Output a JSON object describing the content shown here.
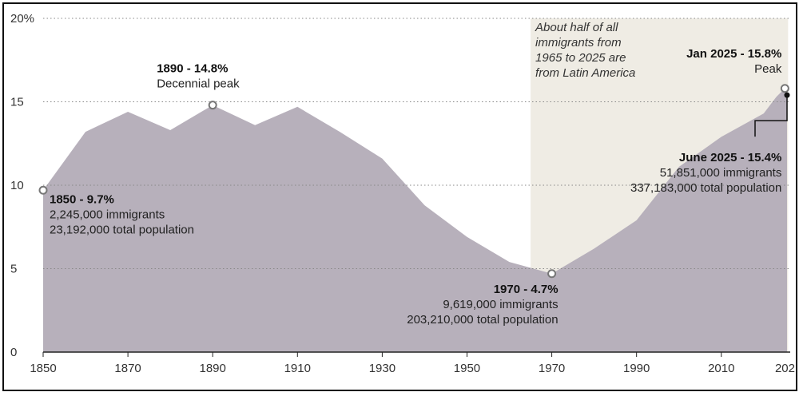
{
  "chart_data": {
    "type": "area",
    "title": "",
    "xlabel": "",
    "ylabel": "",
    "ylim": [
      0,
      20
    ],
    "xlim": [
      1850,
      2025
    ],
    "grid": "horizontal-dotted",
    "colors": {
      "area": "#b7b0bb",
      "highlight": "#efece4",
      "grid": "#888888"
    },
    "x_ticks": [
      "1850",
      "1870",
      "1890",
      "1910",
      "1930",
      "1950",
      "1970",
      "1990",
      "2010",
      "202"
    ],
    "y_ticks": [
      "0",
      "5",
      "10",
      "15",
      "20%"
    ],
    "points": [
      [
        1850,
        9.7
      ],
      [
        1860,
        13.2
      ],
      [
        1870,
        14.4
      ],
      [
        1880,
        13.3
      ],
      [
        1890,
        14.8
      ],
      [
        1900,
        13.6
      ],
      [
        1910,
        14.7
      ],
      [
        1920,
        13.2
      ],
      [
        1930,
        11.6
      ],
      [
        1940,
        8.8
      ],
      [
        1950,
        6.9
      ],
      [
        1960,
        5.4
      ],
      [
        1970,
        4.7
      ],
      [
        1980,
        6.2
      ],
      [
        1990,
        7.9
      ],
      [
        2000,
        11.1
      ],
      [
        2010,
        12.9
      ],
      [
        2020,
        14.3
      ],
      [
        2023,
        15.3
      ],
      [
        2025,
        15.8
      ],
      [
        2025.5,
        15.4
      ]
    ],
    "highlight_range": [
      1965,
      2025
    ],
    "highlight_note": [
      "About half of all",
      "immigrants from",
      "1965 to 2025 are",
      "from Latin America"
    ],
    "markers": [
      {
        "x": 1850,
        "y": 9.7,
        "lines": [
          "1850 - 9.7%",
          "2,245,000 immigrants",
          "23,192,000 total population"
        ],
        "style": "hollow"
      },
      {
        "x": 1890,
        "y": 14.8,
        "lines": [
          "1890 - 14.8%",
          "Decennial peak"
        ],
        "style": "hollow"
      },
      {
        "x": 1970,
        "y": 4.7,
        "lines": [
          "1970 - 4.7%",
          "9,619,000 immigrants",
          "203,210,000 total population"
        ],
        "style": "hollow"
      },
      {
        "x": 2025,
        "y": 15.8,
        "lines": [
          "Jan 2025 - 15.8%",
          "Peak"
        ],
        "style": "hollow"
      },
      {
        "x": 2025.5,
        "y": 15.4,
        "lines": [
          "June 2025 - 15.4%",
          "51,851,000 immigrants",
          "337,183,000 total population"
        ],
        "style": "filled"
      }
    ]
  }
}
